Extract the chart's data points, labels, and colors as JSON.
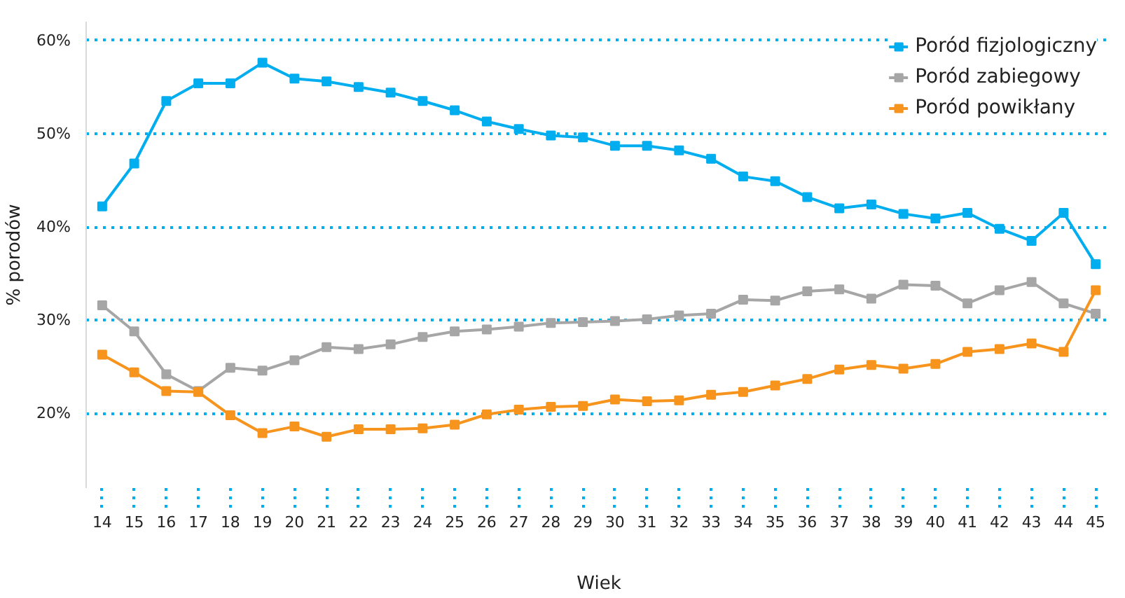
{
  "chart_data": {
    "type": "line",
    "xlabel": "Wiek",
    "ylabel": "% porodów",
    "x": [
      14,
      15,
      16,
      17,
      18,
      19,
      20,
      21,
      22,
      23,
      24,
      25,
      26,
      27,
      28,
      29,
      30,
      31,
      32,
      33,
      34,
      35,
      36,
      37,
      38,
      39,
      40,
      41,
      42,
      43,
      44,
      45
    ],
    "xlim": [
      13.5,
      45.5
    ],
    "xticks": [
      14,
      15,
      16,
      17,
      18,
      19,
      20,
      21,
      22,
      23,
      24,
      25,
      26,
      27,
      28,
      29,
      30,
      31,
      32,
      33,
      34,
      35,
      36,
      37,
      38,
      39,
      40,
      41,
      42,
      43,
      44,
      45
    ],
    "ylim": [
      12,
      62
    ],
    "yticks": [
      {
        "value": 20,
        "label": "20%"
      },
      {
        "value": 30,
        "label": "30%"
      },
      {
        "value": 40,
        "label": "40%"
      },
      {
        "value": 50,
        "label": "50%"
      },
      {
        "value": 60,
        "label": "60%"
      }
    ],
    "grid": "y",
    "legend": "top right",
    "marker": "square",
    "line_style": "solid",
    "series": [
      {
        "name": "Poród fizjologiczny",
        "color": "#00aeef",
        "values": [
          42.2,
          46.8,
          53.5,
          55.4,
          55.4,
          57.6,
          55.9,
          55.6,
          55.0,
          54.4,
          53.5,
          52.5,
          51.3,
          50.5,
          49.8,
          49.6,
          48.7,
          48.7,
          48.2,
          47.3,
          45.4,
          44.9,
          43.2,
          42.0,
          42.4,
          41.4,
          40.9,
          41.5,
          39.8,
          38.5,
          41.5,
          36.0
        ]
      },
      {
        "name": "Poród zabiegowy",
        "color": "#a6a6a6",
        "values": [
          31.6,
          28.8,
          24.2,
          22.4,
          24.9,
          24.6,
          25.7,
          27.1,
          26.9,
          27.4,
          28.2,
          28.8,
          29.0,
          29.3,
          29.7,
          29.8,
          29.9,
          30.1,
          30.5,
          30.7,
          32.2,
          32.1,
          33.1,
          33.3,
          32.3,
          33.8,
          33.7,
          31.8,
          33.2,
          34.1,
          31.8,
          30.7
        ]
      },
      {
        "name": "Poród powikłany",
        "color": "#f7941d",
        "values": [
          26.3,
          24.4,
          22.4,
          22.3,
          19.8,
          17.9,
          18.6,
          17.5,
          18.3,
          18.3,
          18.4,
          18.8,
          19.9,
          20.4,
          20.7,
          20.8,
          21.5,
          21.3,
          21.4,
          22.0,
          22.3,
          23.0,
          23.7,
          24.7,
          25.2,
          24.8,
          25.3,
          26.6,
          26.9,
          27.5,
          26.6,
          33.2
        ]
      }
    ]
  }
}
